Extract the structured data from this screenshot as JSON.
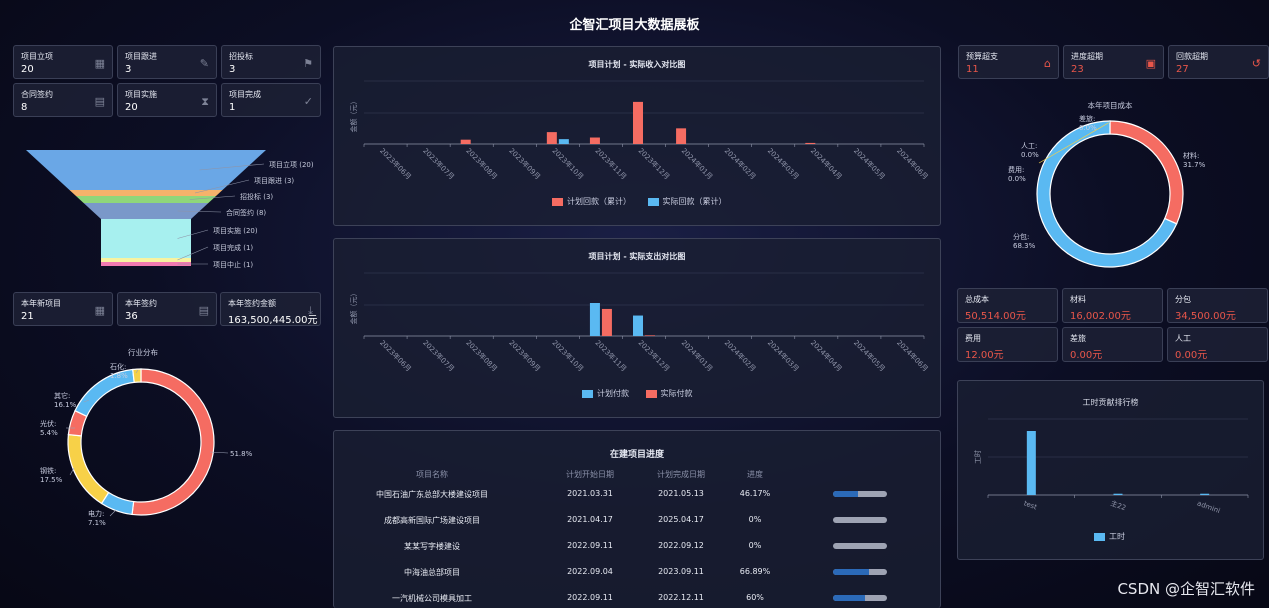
{
  "title": "企智汇项目大数据展板",
  "left_kpis": [
    {
      "label": "项目立项",
      "value": "20",
      "icon": "grid-icon"
    },
    {
      "label": "项目跟进",
      "value": "3",
      "icon": "edit-icon"
    },
    {
      "label": "招投标",
      "value": "3",
      "icon": "flag-icon"
    },
    {
      "label": "合同签约",
      "value": "8",
      "icon": "contract-icon"
    },
    {
      "label": "项目实施",
      "value": "20",
      "icon": "hourglass-icon"
    },
    {
      "label": "项目完成",
      "value": "1",
      "icon": "check-circle-icon"
    }
  ],
  "funnel": {
    "items": [
      "项目立项 (20)",
      "项目跟进 (3)",
      "招投标 (3)",
      "合同签约 (8)",
      "项目实施 (20)",
      "项目完成 (1)",
      "项目中止 (1)"
    ],
    "colors": [
      "#6aa7e6",
      "#f5b26b",
      "#8fd67a",
      "#7a98c9",
      "#a7f0ef",
      "#f8f3a0",
      "#f27ab0"
    ],
    "values": [
      20,
      3,
      3,
      8,
      20,
      1,
      1
    ]
  },
  "year_kpis": [
    {
      "label": "本年新项目",
      "value": "21",
      "icon": "grid-icon"
    },
    {
      "label": "本年签约",
      "value": "36",
      "icon": "contract-icon"
    },
    {
      "label": "本年签约金额",
      "value": "163,500,445.00元",
      "icon": "download-icon"
    }
  ],
  "industry": {
    "title": "行业分布",
    "slices": [
      {
        "label": "",
        "pct": "51.8%",
        "value": 51.8,
        "color": "#f56c62"
      },
      {
        "label": "电力:",
        "pct": "7.1%",
        "value": 7.1,
        "color": "#5ab9f2"
      },
      {
        "label": "钢铁:",
        "pct": "17.5%",
        "value": 17.5,
        "color": "#f7d148"
      },
      {
        "label": "光伏:",
        "pct": "5.4%",
        "value": 5.4,
        "color": "#f56c62"
      },
      {
        "label": "其它:",
        "pct": "16.1%",
        "value": 16.1,
        "color": "#5ab9f2"
      },
      {
        "label": "石化:",
        "pct": "1.8%",
        "value": 1.8,
        "color": "#f7d148"
      }
    ]
  },
  "income_chart": {
    "title": "项目计划 - 实际收入对比图",
    "ylabel": "金额（元）",
    "legend": [
      "计划回款（累计）",
      "实际回款（累计）"
    ]
  },
  "expense_chart": {
    "title": "项目计划 - 实际支出对比图",
    "ylabel": "金额（元）",
    "legend": [
      "计划付款",
      "实际付款"
    ]
  },
  "chart_data": [
    {
      "type": "bar",
      "title": "项目计划 - 实际收入对比图",
      "ylabel": "金额（元）",
      "categories": [
        "2023年06月",
        "2023年07月",
        "2023年08月",
        "2023年09月",
        "2023年10月",
        "2023年11月",
        "2023年12月",
        "2024年01月",
        "2024年02月",
        "2024年03月",
        "2024年04月",
        "2024年05月",
        "2024年06月"
      ],
      "series": [
        {
          "name": "计划回款（累计）",
          "color": "#f56c62",
          "values": [
            0,
            0,
            0.08,
            0,
            0.22,
            0.12,
            0.78,
            0.29,
            0,
            0,
            0.02,
            0,
            0
          ]
        },
        {
          "name": "实际回款（累计）",
          "color": "#5ab9f2",
          "values": [
            0,
            0,
            0,
            0,
            0.09,
            0,
            0,
            0,
            0,
            0,
            0,
            0,
            0
          ]
        }
      ]
    },
    {
      "type": "bar",
      "title": "项目计划 - 实际支出对比图",
      "ylabel": "金额（元）",
      "categories": [
        "2023年06月",
        "2023年07月",
        "2023年08月",
        "2023年09月",
        "2023年10月",
        "2023年11月",
        "2023年12月",
        "2024年01月",
        "2024年02月",
        "2024年03月",
        "2024年04月",
        "2024年05月",
        "2024年06月"
      ],
      "series": [
        {
          "name": "计划付款",
          "color": "#5ab9f2",
          "values": [
            0,
            0,
            0,
            0,
            0,
            1.0,
            0.62,
            0,
            0,
            0,
            0,
            0,
            0
          ]
        },
        {
          "name": "实际付款",
          "color": "#f56c62",
          "values": [
            0,
            0,
            0,
            0,
            0,
            0.82,
            0.02,
            0,
            0,
            0,
            0,
            0,
            0
          ]
        }
      ]
    },
    {
      "type": "bar",
      "title": "工时贡献排行榜",
      "ylabel": "工时",
      "categories": [
        "test",
        "主22",
        "admini"
      ],
      "series": [
        {
          "name": "工时",
          "color": "#5ab9f2",
          "values": [
            1.0,
            0.02,
            0.02
          ]
        }
      ]
    }
  ],
  "progress": {
    "title": "在建项目进度",
    "headers": [
      "项目名称",
      "计划开始日期",
      "计划完成日期",
      "进度"
    ],
    "rows": [
      {
        "name": "中国石油广东总部大楼建设项目",
        "start": "2021.03.31",
        "end": "2021.05.13",
        "pct": "46.17%",
        "fill": 0.4617
      },
      {
        "name": "成都高新国际广场建设项目",
        "start": "2021.04.17",
        "end": "2025.04.17",
        "pct": "0%",
        "fill": 0
      },
      {
        "name": "某某写字楼建设",
        "start": "2022.09.11",
        "end": "2022.09.12",
        "pct": "0%",
        "fill": 0
      },
      {
        "name": "中海油总部项目",
        "start": "2022.09.04",
        "end": "2023.09.11",
        "pct": "66.89%",
        "fill": 0.6689
      },
      {
        "name": "一汽机械公司模具加工",
        "start": "2022.09.11",
        "end": "2022.12.11",
        "pct": "60%",
        "fill": 0.6
      }
    ]
  },
  "right_kpis": [
    {
      "label": "预算超支",
      "value": "11",
      "icon": "home-icon"
    },
    {
      "label": "进度超期",
      "value": "23",
      "icon": "calendar-icon"
    },
    {
      "label": "回款超期",
      "value": "27",
      "icon": "refund-icon"
    }
  ],
  "cost": {
    "title": "本年项目成本",
    "slices": [
      {
        "label": "材料:",
        "pct": "31.7%",
        "value": 31.7,
        "color": "#f56c62"
      },
      {
        "label": "分包:",
        "pct": "68.3%",
        "value": 68.3,
        "color": "#5ab9f2"
      },
      {
        "label": "费用:",
        "pct": "0.0%",
        "value": 0,
        "color": "#f7d148"
      },
      {
        "label": "人工:",
        "pct": "0.0%",
        "value": 0,
        "color": "#f56c62"
      },
      {
        "label": "差旅:",
        "pct": "0.0%",
        "value": 0,
        "color": "#5ab9f2"
      }
    ]
  },
  "cost_kpis": [
    {
      "label": "总成本",
      "value": "50,514.00元"
    },
    {
      "label": "材料",
      "value": "16,002.00元"
    },
    {
      "label": "分包",
      "value": "34,500.00元"
    },
    {
      "label": "费用",
      "value": "12.00元"
    },
    {
      "label": "差旅",
      "value": "0.00元"
    },
    {
      "label": "人工",
      "value": "0.00元"
    }
  ],
  "hours": {
    "title": "工时贡献排行榜",
    "ylabel": "工时",
    "legend": "工时"
  },
  "watermark": "CSDN @企智汇软件"
}
